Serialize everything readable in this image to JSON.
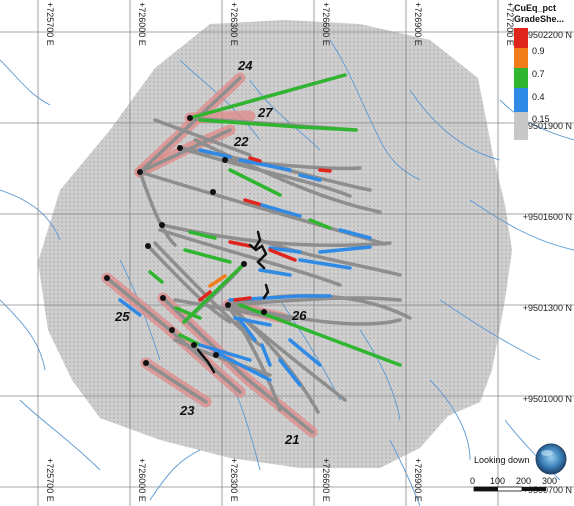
{
  "grid": {
    "eastings": [
      "+725700 E",
      "+726000 E",
      "+726300 E",
      "+726600 E",
      "+726900 E",
      "+727200 E"
    ],
    "northings": [
      "+9502200 N",
      "+9501900 N",
      "+9501600 N",
      "+9501300 N",
      "+9501000 N",
      "+9500700 N"
    ]
  },
  "legend": {
    "title_line1": "CuEq_pct",
    "title_line2": "GradeShe...",
    "entries": [
      {
        "label": "0.9",
        "color": "#e0261c"
      },
      {
        "label": "0.7",
        "color": "#f07d1a"
      },
      {
        "label": "0.4",
        "color": "#2fb52f"
      },
      {
        "label": "0.15",
        "color": "#2f8ae6"
      },
      {
        "label": "",
        "color": "#c7c7c7"
      }
    ]
  },
  "hole_labels": [
    "24",
    "27",
    "22",
    "25",
    "26",
    "23",
    "21"
  ],
  "view": {
    "label": "Looking down"
  },
  "scalebar": {
    "ticks": [
      "0",
      "100",
      "200",
      "300"
    ]
  }
}
